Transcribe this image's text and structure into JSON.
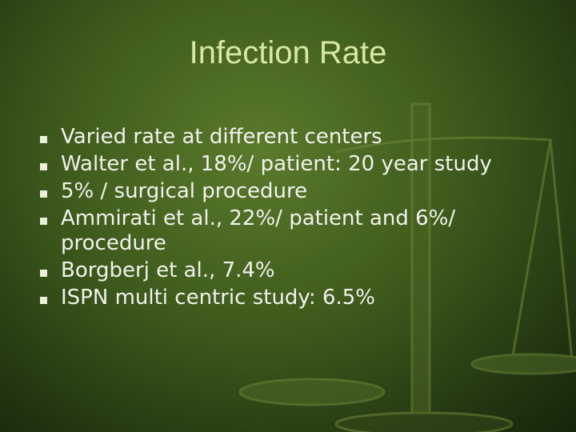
{
  "slide": {
    "title": "Infection Rate",
    "bullets": [
      "Varied rate at different centers",
      "Walter et al., 18%/ patient: 20 year study",
      "5% / surgical procedure",
      "Ammirati et al., 22%/ patient and 6%/ procedure",
      "Borgberj et al., 7.4%",
      "ISPN multi centric study: 6.5%"
    ]
  }
}
